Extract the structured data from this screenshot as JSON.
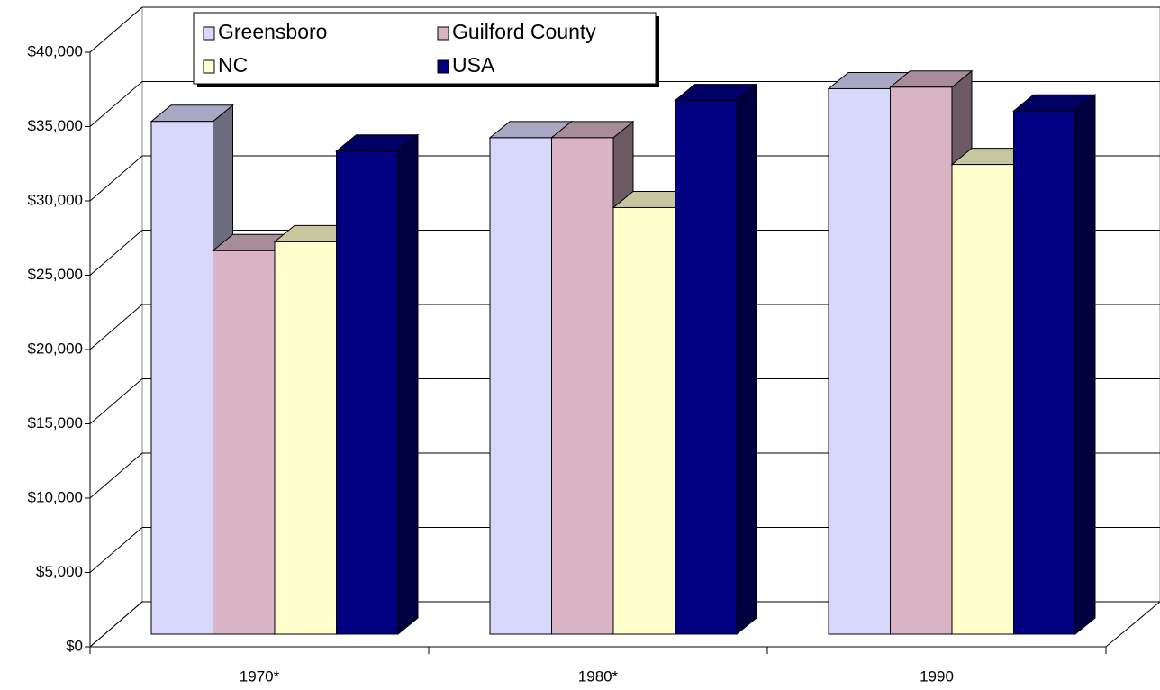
{
  "chart_data": {
    "type": "bar3d",
    "categories": [
      "1970*",
      "1980*",
      "1990"
    ],
    "series": [
      {
        "name": "Greensboro",
        "color": "#d8d8fc",
        "values": [
          34500,
          33400,
          36700
        ]
      },
      {
        "name": "Guilford County",
        "color": "#d8b4c4",
        "values": [
          25800,
          33400,
          36800
        ]
      },
      {
        "name": "NC",
        "color": "#ffffcc",
        "values": [
          26400,
          28700,
          31600
        ]
      },
      {
        "name": "USA",
        "color": "#000080",
        "values": [
          32500,
          35900,
          35200
        ]
      }
    ],
    "ylim": [
      0,
      40000
    ],
    "yticks": [
      {
        "value": 0,
        "label": "$0"
      },
      {
        "value": 5000,
        "label": "$5,000"
      },
      {
        "value": 10000,
        "label": "$10,000"
      },
      {
        "value": 15000,
        "label": "$15,000"
      },
      {
        "value": 20000,
        "label": "$20,000"
      },
      {
        "value": 25000,
        "label": "$25,000"
      },
      {
        "value": 30000,
        "label": "$30,000"
      },
      {
        "value": 35000,
        "label": "$35,000"
      },
      {
        "value": 40000,
        "label": "$40,000"
      }
    ],
    "grid": true
  }
}
